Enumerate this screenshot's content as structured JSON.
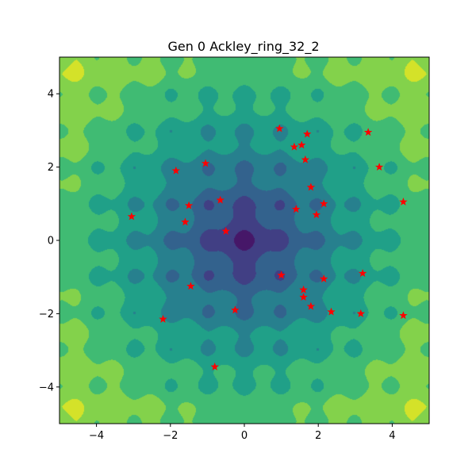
{
  "chart_data": {
    "type": "scatter",
    "subtype": "filled-contour-with-scatter",
    "title": "Gen 0 Ackley_ring_32_2",
    "xlabel": "",
    "ylabel": "",
    "xlim": [
      -5,
      5
    ],
    "ylim": [
      -5,
      5
    ],
    "x_ticks": [
      -4,
      -2,
      0,
      2,
      4
    ],
    "y_ticks": [
      -4,
      -2,
      0,
      2,
      4
    ],
    "grid": false,
    "contour": {
      "function": "Ackley",
      "colormap": "viridis",
      "levels": 8,
      "minimum_at": [
        0,
        0
      ]
    },
    "scatter_series": {
      "marker": "star",
      "color": "#ff0000",
      "points": [
        {
          "x": 0.95,
          "y": 3.05
        },
        {
          "x": 1.7,
          "y": 2.9
        },
        {
          "x": 3.35,
          "y": 2.95
        },
        {
          "x": 1.35,
          "y": 2.55
        },
        {
          "x": 1.55,
          "y": 2.6
        },
        {
          "x": 1.65,
          "y": 2.2
        },
        {
          "x": 3.65,
          "y": 2.0
        },
        {
          "x": -1.85,
          "y": 1.9
        },
        {
          "x": -1.05,
          "y": 2.1
        },
        {
          "x": 1.8,
          "y": 1.45
        },
        {
          "x": -0.65,
          "y": 1.1
        },
        {
          "x": -1.5,
          "y": 0.95
        },
        {
          "x": 1.4,
          "y": 0.85
        },
        {
          "x": 2.15,
          "y": 1.0
        },
        {
          "x": 1.95,
          "y": 0.7
        },
        {
          "x": 4.3,
          "y": 1.05
        },
        {
          "x": -3.05,
          "y": 0.65
        },
        {
          "x": -1.6,
          "y": 0.5
        },
        {
          "x": -0.5,
          "y": 0.25
        },
        {
          "x": 1.0,
          "y": -0.95
        },
        {
          "x": 2.15,
          "y": -1.05
        },
        {
          "x": 3.2,
          "y": -0.9
        },
        {
          "x": -1.45,
          "y": -1.25
        },
        {
          "x": 1.6,
          "y": -1.35
        },
        {
          "x": 1.6,
          "y": -1.55
        },
        {
          "x": 1.8,
          "y": -1.8
        },
        {
          "x": 2.35,
          "y": -1.95
        },
        {
          "x": 3.15,
          "y": -2.0
        },
        {
          "x": 4.3,
          "y": -2.05
        },
        {
          "x": -0.25,
          "y": -1.9
        },
        {
          "x": -2.2,
          "y": -2.15
        },
        {
          "x": -0.8,
          "y": -3.45
        }
      ]
    }
  }
}
